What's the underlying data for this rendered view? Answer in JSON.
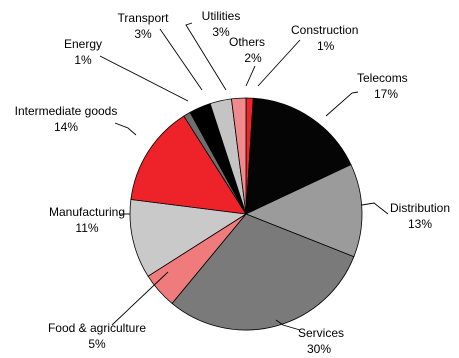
{
  "chart_data": {
    "type": "pie",
    "title": "",
    "start_angle_deg": 0,
    "direction": "clockwise",
    "slices": [
      {
        "name": "Construction",
        "pct_label": "1%",
        "value": 1,
        "color": "#e8262b"
      },
      {
        "name": "Telecoms",
        "pct_label": "17%",
        "value": 17,
        "color": "#050505"
      },
      {
        "name": "Distribution",
        "pct_label": "13%",
        "value": 13,
        "color": "#9b9b9b"
      },
      {
        "name": "Services",
        "pct_label": "30%",
        "value": 30,
        "color": "#7a7a7a"
      },
      {
        "name": "Food & agriculture",
        "pct_label": "5%",
        "value": 5,
        "color": "#f07b7d"
      },
      {
        "name": "Manufacturing",
        "pct_label": "11%",
        "value": 11,
        "color": "#c9c9c9"
      },
      {
        "name": "Intermediate goods",
        "pct_label": "14%",
        "value": 14,
        "color": "#ee2229"
      },
      {
        "name": "Energy",
        "pct_label": "1%",
        "value": 1,
        "color": "#6e6e6e"
      },
      {
        "name": "Transport",
        "pct_label": "3%",
        "value": 3,
        "color": "#000000"
      },
      {
        "name": "Utilities",
        "pct_label": "3%",
        "value": 3,
        "color": "#c4c4c4"
      },
      {
        "name": "Others",
        "pct_label": "2%",
        "value": 2,
        "color": "#f08a8c"
      }
    ]
  }
}
